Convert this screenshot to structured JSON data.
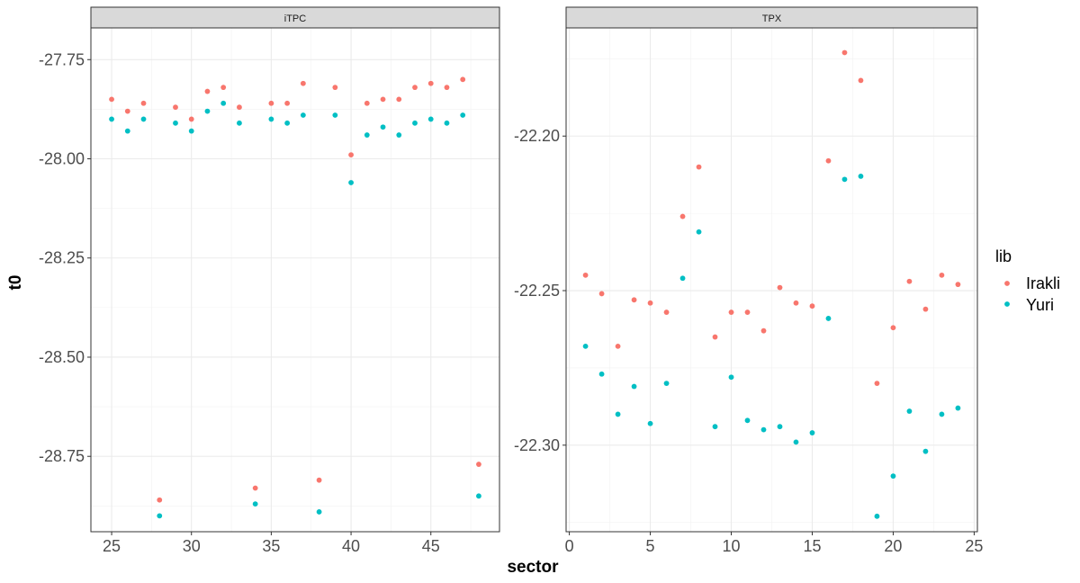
{
  "chart_data": {
    "type": "scatter",
    "xlabel": "sector",
    "ylabel": "t0",
    "legend": {
      "title": "lib",
      "placement": "right",
      "entries": [
        {
          "name": "Irakli",
          "color": "#F8766D"
        },
        {
          "name": "Yuri",
          "color": "#00BFC4"
        }
      ]
    },
    "grid": true,
    "panels": [
      {
        "strip": "iTPC",
        "xlim": [
          23.7,
          49.3
        ],
        "ylim": [
          -28.94,
          -27.67
        ],
        "xticks": [
          25,
          30,
          35,
          40,
          45
        ],
        "yticks": [
          -27.75,
          -28.0,
          -28.25,
          -28.5,
          -28.75
        ],
        "ytick_labels": [
          "-27.75",
          "-28.00",
          "-28.25",
          "-28.50",
          "-28.75"
        ],
        "series": [
          {
            "name": "Irakli",
            "x": [
              25,
              26,
              27,
              28,
              29,
              30,
              31,
              32,
              33,
              34,
              35,
              36,
              37,
              38,
              39,
              40,
              41,
              42,
              43,
              44,
              45,
              46,
              47,
              48
            ],
            "y": [
              -27.85,
              -27.88,
              -27.86,
              -28.86,
              -27.87,
              -27.9,
              -27.83,
              -27.82,
              -27.87,
              -28.83,
              -27.86,
              -27.86,
              -27.81,
              -28.81,
              -27.82,
              -27.99,
              -27.86,
              -27.85,
              -27.85,
              -27.82,
              -27.81,
              -27.82,
              -27.8,
              -28.77
            ]
          },
          {
            "name": "Yuri",
            "x": [
              25,
              26,
              27,
              28,
              29,
              30,
              31,
              32,
              33,
              34,
              35,
              36,
              37,
              38,
              39,
              40,
              41,
              42,
              43,
              44,
              45,
              46,
              47,
              48
            ],
            "y": [
              -27.9,
              -27.93,
              -27.9,
              -28.9,
              -27.91,
              -27.93,
              -27.88,
              -27.86,
              -27.91,
              -28.87,
              -27.9,
              -27.91,
              -27.89,
              -28.89,
              -27.89,
              -28.06,
              -27.94,
              -27.92,
              -27.94,
              -27.91,
              -27.9,
              -27.91,
              -27.89,
              -28.85
            ]
          }
        ]
      },
      {
        "strip": "TPX",
        "xlim": [
          -0.2,
          25.2
        ],
        "ylim": [
          -22.328,
          -22.165
        ],
        "xticks": [
          0,
          5,
          10,
          15,
          20,
          25
        ],
        "yticks": [
          -22.2,
          -22.25,
          -22.3
        ],
        "ytick_labels": [
          "-22.20",
          "-22.25",
          "-22.30"
        ],
        "series": [
          {
            "name": "Irakli",
            "x": [
              1,
              2,
              3,
              4,
              5,
              6,
              7,
              8,
              9,
              10,
              11,
              12,
              13,
              14,
              15,
              16,
              17,
              18,
              19,
              20,
              21,
              22,
              23,
              24
            ],
            "y": [
              -22.245,
              -22.251,
              -22.268,
              -22.253,
              -22.254,
              -22.257,
              -22.226,
              -22.21,
              -22.265,
              -22.257,
              -22.257,
              -22.263,
              -22.249,
              -22.254,
              -22.255,
              -22.208,
              -22.173,
              -22.182,
              -22.28,
              -22.262,
              -22.247,
              -22.256,
              -22.245,
              -22.248
            ]
          },
          {
            "name": "Yuri",
            "x": [
              1,
              2,
              3,
              4,
              5,
              6,
              7,
              8,
              9,
              10,
              11,
              12,
              13,
              14,
              15,
              16,
              17,
              18,
              19,
              20,
              21,
              22,
              23,
              24
            ],
            "y": [
              -22.268,
              -22.277,
              -22.29,
              -22.281,
              -22.293,
              -22.28,
              -22.246,
              -22.231,
              -22.294,
              -22.278,
              -22.292,
              -22.295,
              -22.294,
              -22.299,
              -22.296,
              -22.259,
              -22.214,
              -22.213,
              -22.323,
              -22.31,
              -22.289,
              -22.302,
              -22.29,
              -22.288
            ]
          }
        ]
      }
    ]
  }
}
